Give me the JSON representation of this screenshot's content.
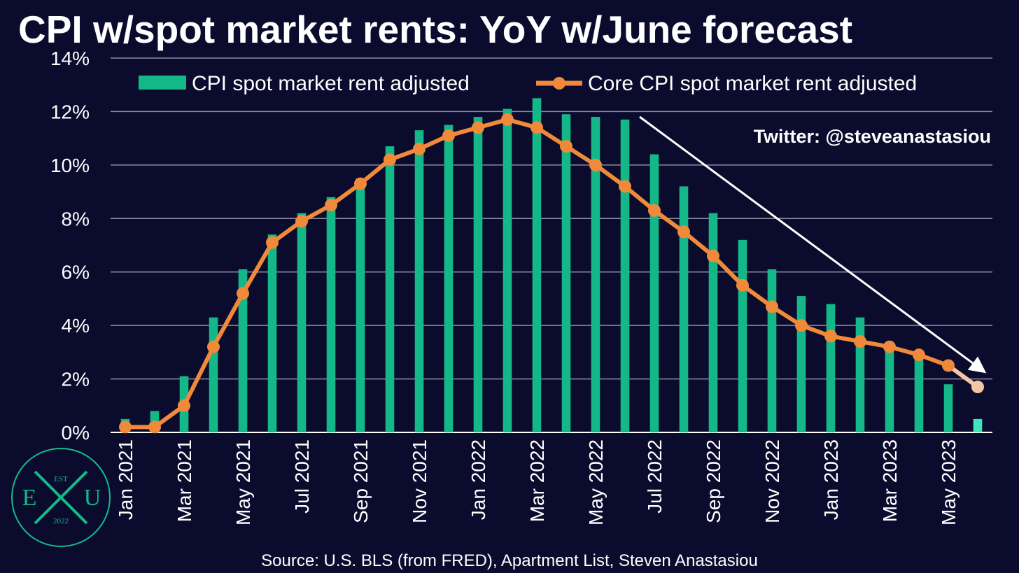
{
  "title": "CPI w/spot market rents: YoY w/June forecast",
  "twitter": "Twitter: @steveanastasiou",
  "source": "Source: U.S. BLS (from FRED), Apartment List, Steven Anastasiou",
  "logo": {
    "top": "EST",
    "left": "E",
    "right": "U",
    "bottom": "2022"
  },
  "colors": {
    "background": "#0b0b2e",
    "bars": "#14b888",
    "forecast_bar": "#3fe6bb",
    "line": "#f08a3a",
    "forecast_line": "#f5c6a6",
    "grid": "#8a8a9e",
    "arrow": "#ffffff"
  },
  "chart_data": {
    "type": "bar",
    "title": "CPI w/spot market rents: YoY w/June forecast",
    "x": [
      "Jan 2021",
      "Feb 2021",
      "Mar 2021",
      "Apr 2021",
      "May 2021",
      "Jun 2021",
      "Jul 2021",
      "Aug 2021",
      "Sep 2021",
      "Oct 2021",
      "Nov 2021",
      "Dec 2021",
      "Jan 2022",
      "Feb 2022",
      "Mar 2022",
      "Apr 2022",
      "May 2022",
      "Jun 2022",
      "Jul 2022",
      "Aug 2022",
      "Sep 2022",
      "Oct 2022",
      "Nov 2022",
      "Dec 2022",
      "Jan 2023",
      "Feb 2023",
      "Mar 2023",
      "Apr 2023",
      "May 2023",
      "Jun 2023"
    ],
    "x_tick_labels": [
      "Jan 2021",
      "Mar 2021",
      "May 2021",
      "Jul 2021",
      "Sep 2021",
      "Nov 2021",
      "Jan 2022",
      "Mar 2022",
      "May 2022",
      "Jul 2022",
      "Sep 2022",
      "Nov 2022",
      "Jan 2023",
      "Mar 2023",
      "May 2023"
    ],
    "series": [
      {
        "name": "CPI spot market rent adjusted",
        "type": "bar",
        "values": [
          0.5,
          0.8,
          2.1,
          4.3,
          6.1,
          7.4,
          8.2,
          8.8,
          9.5,
          10.7,
          11.3,
          11.5,
          11.8,
          12.1,
          12.5,
          11.9,
          11.8,
          11.7,
          10.4,
          9.2,
          8.2,
          7.2,
          6.1,
          5.1,
          4.8,
          4.3,
          3.2,
          2.9,
          1.8,
          0.5
        ],
        "forecast_from_index": 29
      },
      {
        "name": "Core CPI spot market rent adjusted",
        "type": "line",
        "values": [
          0.2,
          0.2,
          1.0,
          3.2,
          5.2,
          7.1,
          7.9,
          8.5,
          9.3,
          10.2,
          10.6,
          11.1,
          11.4,
          11.7,
          11.4,
          10.7,
          10.0,
          9.2,
          8.3,
          7.5,
          6.6,
          5.5,
          4.7,
          4.0,
          3.6,
          3.4,
          3.2,
          2.9,
          2.5,
          1.7
        ],
        "forecast_from_index": 29
      }
    ],
    "y_ticks": [
      "0%",
      "2%",
      "4%",
      "6%",
      "8%",
      "10%",
      "12%",
      "14%"
    ],
    "ylim": [
      0,
      14
    ],
    "grid": true,
    "legend": "top",
    "annotation": "downward trend arrow from Jun 2022 to Jun 2023"
  }
}
